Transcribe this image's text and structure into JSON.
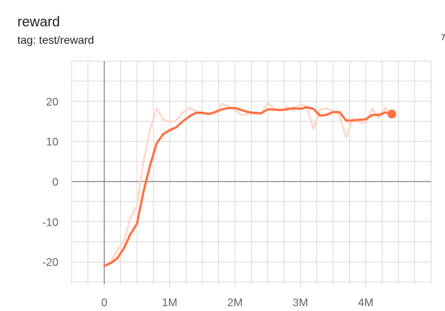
{
  "card": {
    "title": "reward",
    "subtitle": "tag: test/reward",
    "edge_mark": "7"
  },
  "colors": {
    "accent": "#ff7043",
    "accent_light": "#ffd6c7",
    "grid": "#d7d7d7",
    "zero_axis": "#8c8c8c",
    "text": "#5f6368"
  },
  "chart_data": {
    "type": "line",
    "title": "reward",
    "subtitle": "tag: test/reward",
    "xlabel": "",
    "ylabel": "",
    "xlim": [
      -0.5,
      5.0
    ],
    "ylim": [
      -25.5,
      30.0
    ],
    "x_ticks": [
      0,
      1000000,
      2000000,
      3000000,
      4000000
    ],
    "x_tick_labels": [
      "0",
      "1M",
      "2M",
      "3M",
      "4M"
    ],
    "y_ticks": [
      -20,
      -10,
      0,
      10,
      20
    ],
    "y_tick_labels": [
      "-20",
      "-10",
      "0",
      "10",
      "20"
    ],
    "grid": true,
    "legend": "none",
    "series": [
      {
        "style": "raw",
        "x": [
          0,
          100000,
          200000,
          300000,
          400000,
          500000,
          600000,
          700000,
          800000,
          900000,
          1000000,
          1100000,
          1200000,
          1300000,
          1400000,
          1500000,
          1600000,
          1700000,
          1800000,
          1900000,
          2000000,
          2100000,
          2200000,
          2300000,
          2400000,
          2500000,
          2600000,
          2700000,
          2800000,
          2900000,
          3000000,
          3100000,
          3200000,
          3300000,
          3400000,
          3500000,
          3600000,
          3700000,
          3800000,
          3900000,
          4000000,
          4100000,
          4200000,
          4300000,
          4400000
        ],
        "values": [
          -21.0,
          -20.0,
          -17.0,
          -15.0,
          -9.0,
          -6.0,
          5.0,
          13.0,
          18.2,
          15.5,
          14.8,
          15.2,
          17.2,
          18.3,
          17.6,
          17.2,
          17.0,
          17.4,
          19.3,
          18.8,
          17.8,
          16.6,
          16.8,
          16.9,
          17.0,
          19.6,
          18.2,
          17.8,
          18.6,
          17.6,
          19.2,
          18.6,
          13.0,
          17.9,
          18.2,
          17.6,
          16.5,
          11.0,
          15.7,
          14.8,
          14.6,
          18.2,
          15.8,
          18.3,
          16.8
        ]
      },
      {
        "style": "smoothed",
        "x": [
          0,
          100000,
          200000,
          300000,
          400000,
          500000,
          600000,
          700000,
          800000,
          900000,
          1000000,
          1100000,
          1200000,
          1300000,
          1400000,
          1500000,
          1600000,
          1700000,
          1800000,
          1900000,
          2000000,
          2100000,
          2200000,
          2300000,
          2400000,
          2500000,
          2600000,
          2700000,
          2800000,
          2900000,
          3000000,
          3100000,
          3200000,
          3300000,
          3400000,
          3500000,
          3600000,
          3700000,
          3800000,
          3900000,
          4000000,
          4100000,
          4200000,
          4300000,
          4400000
        ],
        "values": [
          -21.0,
          -20.3,
          -19.1,
          -16.6,
          -13.1,
          -10.5,
          -2.5,
          4.0,
          9.5,
          11.8,
          12.8,
          13.5,
          15.0,
          16.2,
          17.1,
          17.1,
          16.8,
          17.3,
          18.0,
          18.3,
          18.3,
          17.8,
          17.3,
          17.1,
          17.0,
          18.0,
          17.9,
          17.8,
          18.0,
          18.3,
          18.1,
          18.5,
          18.1,
          16.4,
          16.6,
          17.3,
          17.3,
          15.2,
          15.2,
          15.4,
          15.5,
          16.6,
          16.6,
          17.2,
          16.8
        ]
      }
    ]
  }
}
